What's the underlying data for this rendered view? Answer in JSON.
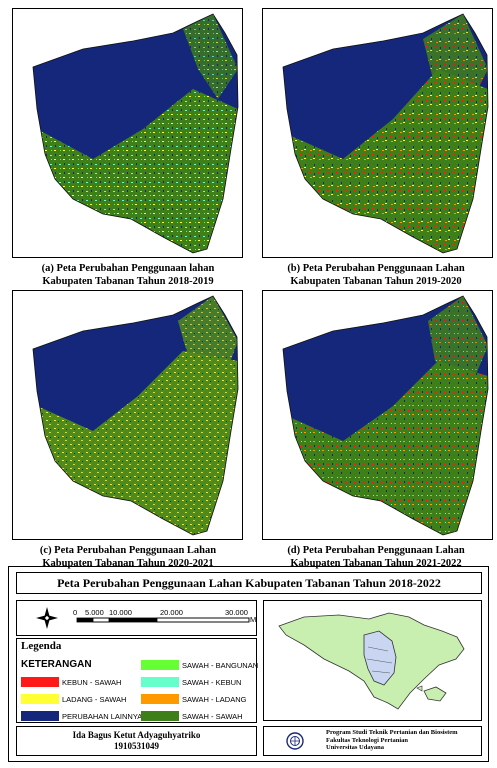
{
  "maps": [
    {
      "caption_line1": "(a) Peta Perubahan Penggunaan lahan",
      "caption_line2": "Kabupaten Tabanan Tahun 2018-2019"
    },
    {
      "caption_line1": "(b) Peta Perubahan Penggunaan Lahan",
      "caption_line2": "Kabupaten Tabanan Tahun 2019-2020"
    },
    {
      "caption_line1": "(c) Peta Perubahan Penggunaan Lahan",
      "caption_line2": "Kabupaten Tabanan Tahun 2020-2021"
    },
    {
      "caption_line1": "(d) Peta Perubahan Penggunaan Lahan",
      "caption_line2": "Kabupaten Tabanan Tahun 2021-2022"
    }
  ],
  "layout_title": "Peta Perubahan Penggunaan Lahan Kabupaten Tabanan Tahun 2018-2022",
  "scale_bar": {
    "ticks": [
      "0",
      "5.000",
      "10.000",
      "20.000",
      "30.000"
    ],
    "unit": "M"
  },
  "legend": {
    "title": "Legenda",
    "subtitle": "KETERANGAN",
    "items": [
      {
        "label": "KEBUN - SAWAH",
        "color": "#ff1a1a"
      },
      {
        "label": "LADANG - SAWAH",
        "color": "#ffff33"
      },
      {
        "label": "PERUBAHAN LAINNYA",
        "color": "#14277a"
      },
      {
        "label": "SAWAH - BANGUNAN",
        "color": "#66ff33"
      },
      {
        "label": "SAWAH - KEBUN",
        "color": "#66ffcc"
      },
      {
        "label": "SAWAH - LADANG",
        "color": "#ff9900"
      },
      {
        "label": "SAWAH - SAWAH",
        "color": "#3f7f1a"
      }
    ]
  },
  "author": {
    "name": "Ida Bagus Ketut Adyaguhyatriko",
    "id": "1910531049"
  },
  "institution": {
    "line1": "Program Studi Teknik Pertanian dan Biosistem",
    "line2": "Fakultas Teknologi Pertanian",
    "line3": "Universitas Udayana"
  },
  "colors": {
    "base": "#14277a",
    "field": "#4e8a1e",
    "inset_land": "#c8efb0",
    "inset_highlight": "#c9d6f2"
  }
}
